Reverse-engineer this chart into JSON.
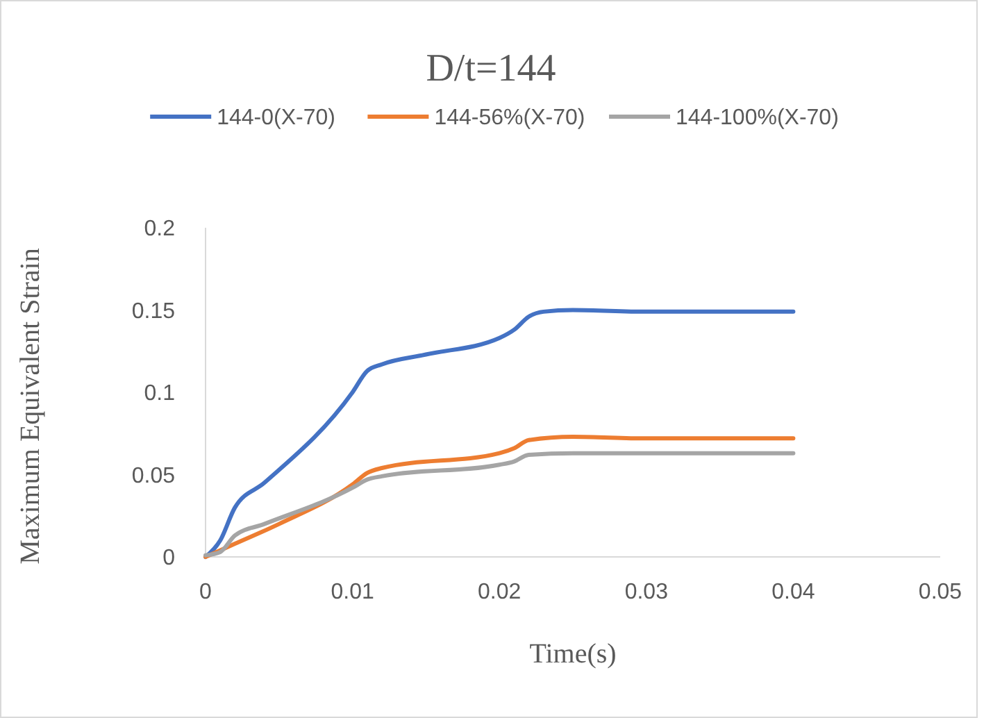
{
  "chart_data": {
    "type": "line",
    "title": "D/t=144",
    "xlabel": "Time(s)",
    "ylabel": "Maximum Equivalent Strain",
    "xlim": [
      0,
      0.05
    ],
    "xticks": [
      0,
      0.01,
      0.02,
      0.03,
      0.04,
      0.05
    ],
    "ylim": [
      0,
      0.2
    ],
    "yticks": [
      0,
      0.05,
      0.1,
      0.15,
      0.2
    ],
    "grid": false,
    "legend": "top",
    "marker": "none",
    "line_style": "solid",
    "series": [
      {
        "name": "144-0(X-70)",
        "color": "#4472c4",
        "x": [
          0,
          0.001,
          0.002,
          0.004,
          0.01,
          0.011,
          0.012,
          0.015,
          0.02,
          0.021,
          0.022,
          0.023,
          0.025,
          0.03,
          0.04
        ],
        "values": [
          0,
          0.01,
          0.03,
          0.045,
          0.1,
          0.113,
          0.117,
          0.123,
          0.133,
          0.138,
          0.146,
          0.149,
          0.15,
          0.149,
          0.149
        ]
      },
      {
        "name": "144-56%(X-70)",
        "color": "#ed7d31",
        "x": [
          0,
          0.002,
          0.005,
          0.01,
          0.011,
          0.012,
          0.02,
          0.021,
          0.022,
          0.025,
          0.03,
          0.04
        ],
        "values": [
          0,
          0.008,
          0.02,
          0.044,
          0.051,
          0.054,
          0.063,
          0.066,
          0.071,
          0.073,
          0.072,
          0.072
        ]
      },
      {
        "name": "144-100%(X-70)",
        "color": "#a5a5a5",
        "x": [
          0,
          0.001,
          0.002,
          0.004,
          0.01,
          0.011,
          0.012,
          0.02,
          0.021,
          0.022,
          0.025,
          0.03,
          0.04
        ],
        "values": [
          0.001,
          0.003,
          0.013,
          0.02,
          0.042,
          0.047,
          0.049,
          0.056,
          0.058,
          0.062,
          0.063,
          0.063,
          0.063
        ]
      }
    ]
  }
}
